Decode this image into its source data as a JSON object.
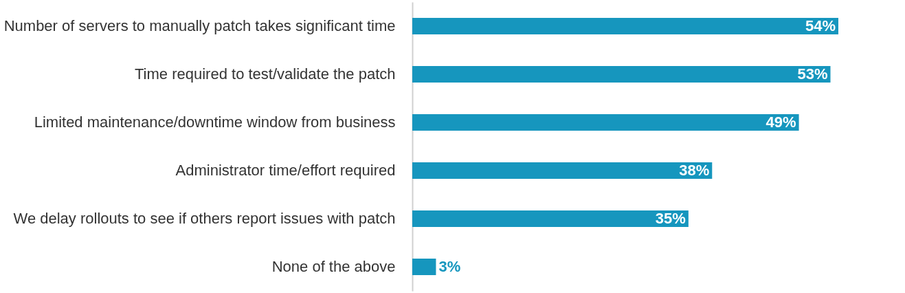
{
  "chart_data": {
    "type": "bar",
    "orientation": "horizontal",
    "categories": [
      "Number of servers to manually patch takes significant time",
      "Time required to test/validate the patch",
      "Limited maintenance/downtime window from business",
      "Administrator time/effort required",
      "We delay rollouts to see if others report issues with patch",
      "None of the above"
    ],
    "values": [
      54,
      53,
      49,
      38,
      35,
      3
    ],
    "value_labels": [
      "54%",
      "53%",
      "49%",
      "38%",
      "35%",
      "3%"
    ],
    "color": "#1696be"
  }
}
